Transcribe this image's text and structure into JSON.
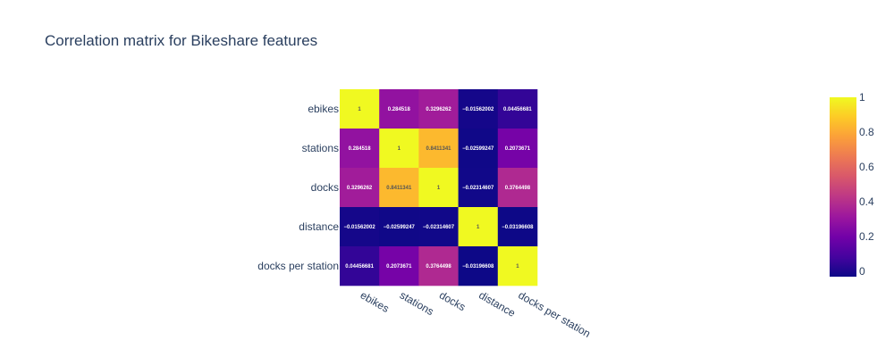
{
  "chart_data": {
    "type": "heatmap",
    "title": "Correlation matrix for Bikeshare features",
    "x_labels": [
      "ebikes",
      "stations",
      "docks",
      "distance",
      "docks per station"
    ],
    "y_labels": [
      "ebikes",
      "stations",
      "docks",
      "distance",
      "docks per station"
    ],
    "z": [
      [
        1,
        0.284518,
        0.3296262,
        -0.01562002,
        0.04456681
      ],
      [
        0.284518,
        1,
        0.8411341,
        -0.02599247,
        0.2073671
      ],
      [
        0.3296262,
        0.8411341,
        1,
        -0.02314607,
        0.3764498
      ],
      [
        -0.01562002,
        -0.02599247,
        -0.02314607,
        1,
        -0.03196608
      ],
      [
        0.04456681,
        0.2073671,
        0.3764498,
        -0.03196608,
        1
      ]
    ],
    "text": [
      [
        "1",
        "0.284518",
        "0.3296262",
        "−0.01562002",
        "0.04456681"
      ],
      [
        "0.284518",
        "1",
        "0.8411341",
        "−0.02599247",
        "0.2073671"
      ],
      [
        "0.3296262",
        "0.8411341",
        "1",
        "−0.02314607",
        "0.3764498"
      ],
      [
        "−0.01562002",
        "−0.02599247",
        "−0.02314607",
        "1",
        "−0.03196608"
      ],
      [
        "0.04456681",
        "0.2073671",
        "0.3764498",
        "−0.03196608",
        "1"
      ]
    ],
    "colorscale": "plasma",
    "colorbar": {
      "range": [
        -0.03196608,
        1
      ],
      "ticks": [
        0,
        0.2,
        0.4,
        0.6,
        0.8,
        1
      ],
      "tick_labels": [
        "0",
        "0.2",
        "0.4",
        "0.6",
        "0.8",
        "1"
      ]
    },
    "colors": {
      "text": "#2a3f5f",
      "scale": [
        "#0d0887",
        "#46039f",
        "#7201a8",
        "#9c179e",
        "#bd3786",
        "#d8576b",
        "#ed7953",
        "#fb9f3a",
        "#fdca26",
        "#f0f921"
      ]
    }
  }
}
